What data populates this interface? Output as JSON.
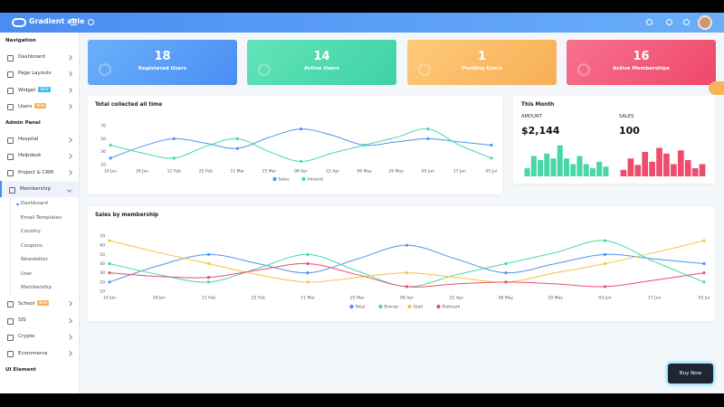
{
  "header": {
    "brand": "Gradient able"
  },
  "sidebar": {
    "sections": [
      {
        "title": "Navigation",
        "items": [
          {
            "label": "Dashboard"
          },
          {
            "label": "Page Layouts"
          },
          {
            "label": "Widget",
            "badge": "NEW"
          },
          {
            "label": "Users",
            "badge": "New"
          }
        ]
      },
      {
        "title": "Admin Panel",
        "items": [
          {
            "label": "Hospital"
          },
          {
            "label": "Helpdesk"
          },
          {
            "label": "Project & CRM"
          },
          {
            "label": "Membership",
            "children": [
              "Dashboard",
              "Email Templates",
              "Country",
              "Coupons",
              "Newsletter",
              "User",
              "Membership"
            ]
          },
          {
            "label": "School",
            "badge": "New"
          },
          {
            "label": "SIS"
          },
          {
            "label": "Crypto"
          },
          {
            "label": "Ecommerce"
          }
        ]
      },
      {
        "title": "UI Element"
      }
    ]
  },
  "stats": [
    {
      "value": 18,
      "label": "Registered Users"
    },
    {
      "value": 14,
      "label": "Active Users"
    },
    {
      "value": 1,
      "label": "Pending Users"
    },
    {
      "value": 16,
      "label": "Active Memberships"
    }
  ],
  "chart_data": [
    {
      "type": "line",
      "title": "Total collected all time",
      "categories": [
        "14 Jan",
        "28 Jan",
        "11 Feb",
        "25 Feb",
        "11 Mar",
        "25 Mar",
        "08 Apr",
        "22 Apr",
        "06 May",
        "20 May",
        "03 Jun",
        "17 Jun",
        "01 Jul"
      ],
      "ylim": [
        10,
        70
      ],
      "yticks": [
        10,
        30,
        50,
        70
      ],
      "grid": false,
      "series": [
        {
          "name": "Sales",
          "color": "#4d94f6",
          "values": [
            20,
            38,
            50,
            43,
            35,
            52,
            65,
            55,
            40,
            45,
            50,
            45,
            40
          ]
        },
        {
          "name": "Amount",
          "color": "#48d7a9",
          "values": [
            40,
            28,
            20,
            38,
            50,
            30,
            15,
            28,
            40,
            52,
            65,
            40,
            20
          ]
        }
      ]
    },
    {
      "type": "line",
      "title": "Sales by membership",
      "categories": [
        "14 Jan",
        "28 Jan",
        "11 Feb",
        "25 Feb",
        "11 Mar",
        "25 Mar",
        "08 Apr",
        "22 Apr",
        "06 May",
        "20 May",
        "03 Jun",
        "17 Jun",
        "01 Jul"
      ],
      "ylim": [
        10,
        70
      ],
      "yticks": [
        10,
        20,
        30,
        40,
        50,
        60,
        70
      ],
      "grid": false,
      "series": [
        {
          "name": "Total",
          "color": "#4d94f6",
          "values": [
            20,
            38,
            50,
            40,
            30,
            45,
            60,
            45,
            30,
            40,
            50,
            45,
            40
          ]
        },
        {
          "name": "Bronze",
          "color": "#48d7a9",
          "values": [
            40,
            28,
            20,
            35,
            50,
            32,
            15,
            28,
            40,
            52,
            65,
            42,
            20
          ]
        },
        {
          "name": "Gold",
          "color": "#f6c344",
          "values": [
            65,
            52,
            40,
            28,
            20,
            25,
            30,
            25,
            20,
            30,
            40,
            52,
            65
          ]
        },
        {
          "name": "Platinum",
          "color": "#ec4d6d",
          "values": [
            30,
            26,
            25,
            33,
            40,
            28,
            15,
            18,
            20,
            18,
            15,
            22,
            30
          ]
        }
      ]
    }
  ],
  "this_month": {
    "title": "This Month",
    "amount_label": "AMOUNT",
    "amount": "$2,144",
    "sales_label": "SALES",
    "sales": 100,
    "amount_bars": {
      "color": "#48d7a9",
      "values": [
        10,
        25,
        20,
        28,
        22,
        38,
        22,
        15,
        25,
        15,
        10,
        18,
        12
      ]
    },
    "sales_bars": {
      "color": "#ec4d6d",
      "values": [
        8,
        22,
        14,
        30,
        18,
        35,
        28,
        15,
        32,
        20,
        10,
        15
      ]
    }
  },
  "buy_now": "Buy Now"
}
